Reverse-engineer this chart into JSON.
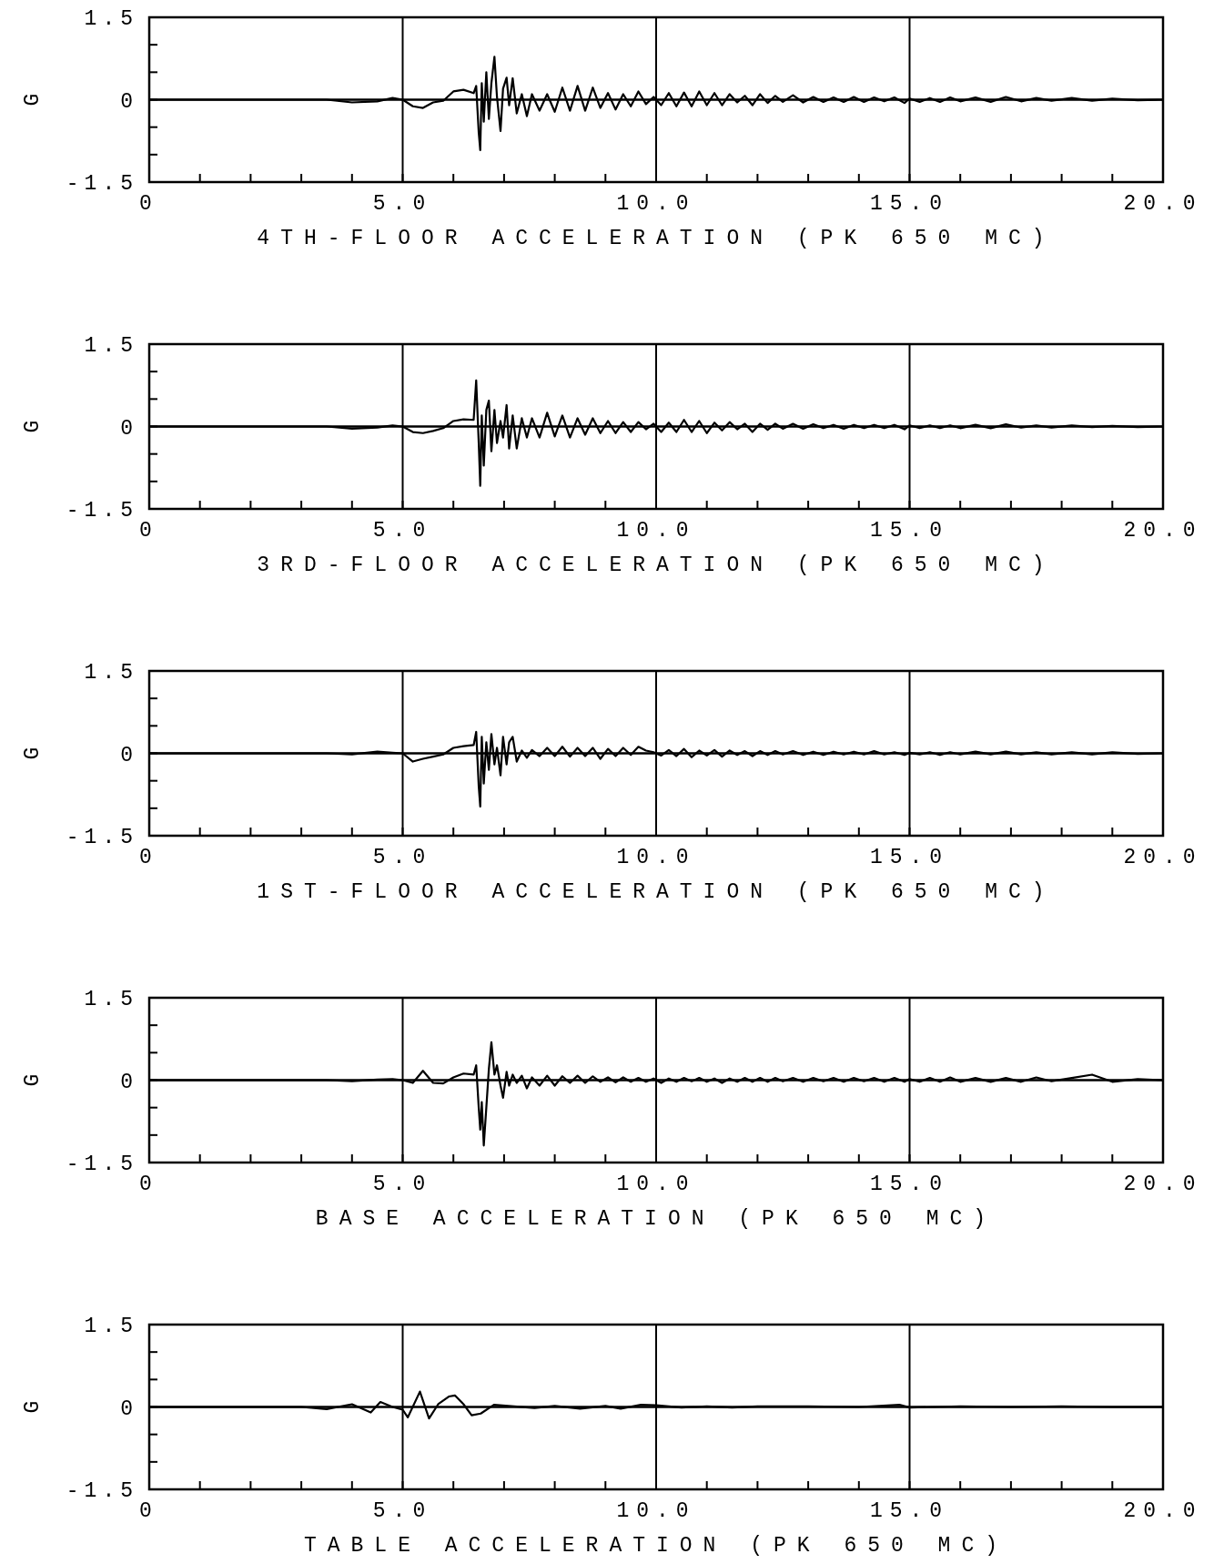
{
  "chart_data": [
    {
      "type": "line",
      "xlabel": "4TH-FLOOR ACCELERATION (PK 650 MC)",
      "ylabel": "G",
      "color": "#000000",
      "xlim": [
        0,
        20
      ],
      "ylim": [
        -1.5,
        1.5
      ],
      "xticks": [
        {
          "value": 0,
          "label": "0"
        },
        {
          "value": 1,
          "label": null
        },
        {
          "value": 2,
          "label": null
        },
        {
          "value": 3,
          "label": null
        },
        {
          "value": 4,
          "label": null
        },
        {
          "value": 5,
          "label": "5.0"
        },
        {
          "value": 6,
          "label": null
        },
        {
          "value": 7,
          "label": null
        },
        {
          "value": 8,
          "label": null
        },
        {
          "value": 9,
          "label": null
        },
        {
          "value": 10,
          "label": "10.0"
        },
        {
          "value": 11,
          "label": null
        },
        {
          "value": 12,
          "label": null
        },
        {
          "value": 13,
          "label": null
        },
        {
          "value": 14,
          "label": null
        },
        {
          "value": 15,
          "label": "15.0"
        },
        {
          "value": 16,
          "label": null
        },
        {
          "value": 17,
          "label": null
        },
        {
          "value": 18,
          "label": null
        },
        {
          "value": 19,
          "label": null
        },
        {
          "value": 20,
          "label": "20.0"
        }
      ],
      "yticks": [
        -1.5,
        {
          "value": -1,
          "label": null
        },
        {
          "value": -0.5,
          "label": null
        },
        0,
        {
          "value": 0.5,
          "label": null
        },
        {
          "value": 1,
          "label": null
        },
        1.5
      ],
      "ref_lines": [
        {
          "axis": "y",
          "value": 0
        },
        {
          "axis": "x",
          "value": 5
        },
        {
          "axis": "x",
          "value": 10
        },
        {
          "axis": "x",
          "value": 15
        }
      ],
      "x": [
        0,
        3.5,
        4.0,
        4.5,
        4.8,
        5.0,
        5.2,
        5.4,
        5.6,
        5.8,
        6.0,
        6.2,
        6.4,
        6.45,
        6.5,
        6.53,
        6.56,
        6.6,
        6.65,
        6.7,
        6.75,
        6.81,
        6.86,
        6.93,
        6.98,
        7.05,
        7.1,
        7.17,
        7.25,
        7.35,
        7.45,
        7.55,
        7.7,
        7.85,
        8.0,
        8.15,
        8.3,
        8.45,
        8.6,
        8.75,
        8.9,
        9.05,
        9.2,
        9.35,
        9.5,
        9.65,
        9.8,
        9.95,
        10.1,
        10.25,
        10.4,
        10.55,
        10.7,
        10.85,
        11.0,
        11.15,
        11.3,
        11.45,
        11.6,
        11.75,
        11.9,
        12.05,
        12.2,
        12.35,
        12.5,
        12.7,
        12.9,
        13.1,
        13.3,
        13.5,
        13.7,
        13.9,
        14.1,
        14.3,
        14.5,
        14.7,
        14.9,
        15.0,
        15.2,
        15.4,
        15.6,
        15.8,
        16.0,
        16.3,
        16.6,
        16.9,
        17.2,
        17.5,
        17.8,
        18.2,
        18.6,
        19.0,
        19.5,
        20.0
      ],
      "values": [
        0,
        0,
        -0.05,
        -0.03,
        0.03,
        0,
        -0.12,
        -0.15,
        -0.05,
        -0.02,
        0.15,
        0.18,
        0.12,
        0.25,
        -0.6,
        -0.92,
        0.3,
        -0.4,
        0.5,
        -0.35,
        0.3,
        0.78,
        0.05,
        -0.57,
        0.2,
        0.4,
        -0.1,
        0.39,
        -0.25,
        0.1,
        -0.3,
        0.1,
        -0.2,
        0.1,
        -0.22,
        0.22,
        -0.2,
        0.25,
        -0.2,
        0.22,
        -0.15,
        0.12,
        -0.18,
        0.1,
        -0.12,
        0.15,
        -0.08,
        0.05,
        -0.1,
        0.12,
        -0.12,
        0.13,
        -0.12,
        0.15,
        -0.1,
        0.12,
        -0.1,
        0.1,
        -0.05,
        0.07,
        -0.1,
        0.1,
        -0.06,
        0.07,
        -0.04,
        0.08,
        -0.05,
        0.05,
        -0.04,
        0.04,
        -0.04,
        0.05,
        -0.04,
        0.04,
        -0.03,
        0.04,
        -0.06,
        0.02,
        -0.04,
        0.03,
        -0.04,
        0.04,
        -0.03,
        0.04,
        -0.04,
        0.05,
        -0.03,
        0.03,
        -0.02,
        0.03,
        -0.02,
        0.02,
        -0.01,
        0
      ]
    },
    {
      "type": "line",
      "xlabel": "3RD-FLOOR ACCELERATION (PK 650 MC)",
      "ylabel": "G",
      "color": "#000000",
      "xlim": [
        0,
        20
      ],
      "ylim": [
        -1.5,
        1.5
      ],
      "xticks": [
        {
          "value": 0,
          "label": "0"
        },
        {
          "value": 1,
          "label": null
        },
        {
          "value": 2,
          "label": null
        },
        {
          "value": 3,
          "label": null
        },
        {
          "value": 4,
          "label": null
        },
        {
          "value": 5,
          "label": "5.0"
        },
        {
          "value": 6,
          "label": null
        },
        {
          "value": 7,
          "label": null
        },
        {
          "value": 8,
          "label": null
        },
        {
          "value": 9,
          "label": null
        },
        {
          "value": 10,
          "label": "10.0"
        },
        {
          "value": 11,
          "label": null
        },
        {
          "value": 12,
          "label": null
        },
        {
          "value": 13,
          "label": null
        },
        {
          "value": 14,
          "label": null
        },
        {
          "value": 15,
          "label": "15.0"
        },
        {
          "value": 16,
          "label": null
        },
        {
          "value": 17,
          "label": null
        },
        {
          "value": 18,
          "label": null
        },
        {
          "value": 19,
          "label": null
        },
        {
          "value": 20,
          "label": "20.0"
        }
      ],
      "yticks": [
        -1.5,
        {
          "value": -1,
          "label": null
        },
        {
          "value": -0.5,
          "label": null
        },
        0,
        {
          "value": 0.5,
          "label": null
        },
        {
          "value": 1,
          "label": null
        },
        1.5
      ],
      "ref_lines": [
        {
          "axis": "y",
          "value": 0
        },
        {
          "axis": "x",
          "value": 5
        },
        {
          "axis": "x",
          "value": 10
        },
        {
          "axis": "x",
          "value": 15
        }
      ],
      "x": [
        0,
        3.5,
        4.0,
        4.5,
        4.8,
        5.0,
        5.2,
        5.4,
        5.6,
        5.8,
        6.0,
        6.2,
        6.4,
        6.45,
        6.5,
        6.53,
        6.56,
        6.6,
        6.65,
        6.7,
        6.75,
        6.81,
        6.86,
        6.93,
        6.98,
        7.05,
        7.1,
        7.17,
        7.25,
        7.35,
        7.45,
        7.55,
        7.7,
        7.85,
        8.0,
        8.15,
        8.3,
        8.45,
        8.6,
        8.75,
        8.9,
        9.05,
        9.2,
        9.35,
        9.5,
        9.65,
        9.8,
        9.95,
        10.1,
        10.25,
        10.4,
        10.55,
        10.7,
        10.85,
        11.0,
        11.15,
        11.3,
        11.45,
        11.6,
        11.75,
        11.9,
        12.05,
        12.2,
        12.35,
        12.5,
        12.7,
        12.9,
        13.1,
        13.3,
        13.5,
        13.7,
        13.9,
        14.1,
        14.3,
        14.5,
        14.7,
        14.9,
        15.0,
        15.2,
        15.4,
        15.6,
        15.8,
        16.0,
        16.3,
        16.6,
        16.9,
        17.2,
        17.5,
        17.8,
        18.2,
        18.6,
        19.0,
        19.5,
        20.0
      ],
      "values": [
        0,
        0,
        -0.04,
        -0.02,
        0.02,
        0,
        -0.1,
        -0.12,
        -0.08,
        -0.03,
        0.1,
        0.13,
        0.12,
        0.84,
        -0.3,
        -1.08,
        0.2,
        -0.71,
        0.3,
        0.47,
        -0.45,
        0.3,
        -0.3,
        0.1,
        -0.2,
        0.39,
        -0.4,
        0.2,
        -0.4,
        0.15,
        -0.2,
        0.15,
        -0.2,
        0.25,
        -0.18,
        0.2,
        -0.2,
        0.15,
        -0.15,
        0.15,
        -0.12,
        0.1,
        -0.12,
        0.08,
        -0.1,
        0.08,
        -0.05,
        0.05,
        -0.1,
        0.07,
        -0.1,
        0.12,
        -0.1,
        0.1,
        -0.12,
        0.07,
        -0.07,
        0.08,
        -0.05,
        0.05,
        -0.1,
        0.05,
        -0.06,
        0.05,
        -0.04,
        0.05,
        -0.04,
        0.04,
        -0.03,
        0.03,
        -0.04,
        0.03,
        -0.03,
        0.03,
        -0.03,
        0.03,
        -0.05,
        0.02,
        -0.03,
        0.02,
        -0.03,
        0.02,
        -0.03,
        0.03,
        -0.03,
        0.04,
        -0.02,
        0.02,
        -0.02,
        0.02,
        -0.01,
        0.01,
        -0.01,
        0
      ]
    },
    {
      "type": "line",
      "xlabel": "1ST-FLOOR ACCELERATION (PK 650 MC)",
      "ylabel": "G",
      "color": "#000000",
      "xlim": [
        0,
        20
      ],
      "ylim": [
        -1.5,
        1.5
      ],
      "xticks": [
        {
          "value": 0,
          "label": "0"
        },
        {
          "value": 1,
          "label": null
        },
        {
          "value": 2,
          "label": null
        },
        {
          "value": 3,
          "label": null
        },
        {
          "value": 4,
          "label": null
        },
        {
          "value": 5,
          "label": "5.0"
        },
        {
          "value": 6,
          "label": null
        },
        {
          "value": 7,
          "label": null
        },
        {
          "value": 8,
          "label": null
        },
        {
          "value": 9,
          "label": null
        },
        {
          "value": 10,
          "label": "10.0"
        },
        {
          "value": 11,
          "label": null
        },
        {
          "value": 12,
          "label": null
        },
        {
          "value": 13,
          "label": null
        },
        {
          "value": 14,
          "label": null
        },
        {
          "value": 15,
          "label": "15.0"
        },
        {
          "value": 16,
          "label": null
        },
        {
          "value": 17,
          "label": null
        },
        {
          "value": 18,
          "label": null
        },
        {
          "value": 19,
          "label": null
        },
        {
          "value": 20,
          "label": "20.0"
        }
      ],
      "yticks": [
        -1.5,
        {
          "value": -1,
          "label": null
        },
        {
          "value": -0.5,
          "label": null
        },
        0,
        {
          "value": 0.5,
          "label": null
        },
        {
          "value": 1,
          "label": null
        },
        1.5
      ],
      "ref_lines": [
        {
          "axis": "y",
          "value": 0
        },
        {
          "axis": "x",
          "value": 5
        },
        {
          "axis": "x",
          "value": 10
        },
        {
          "axis": "x",
          "value": 15
        }
      ],
      "x": [
        0,
        3.5,
        4.0,
        4.5,
        4.8,
        5.0,
        5.2,
        5.4,
        5.6,
        5.8,
        6.0,
        6.2,
        6.4,
        6.45,
        6.5,
        6.53,
        6.56,
        6.6,
        6.65,
        6.7,
        6.75,
        6.81,
        6.86,
        6.93,
        6.98,
        7.05,
        7.1,
        7.17,
        7.25,
        7.35,
        7.45,
        7.55,
        7.7,
        7.85,
        8.0,
        8.15,
        8.3,
        8.45,
        8.6,
        8.75,
        8.9,
        9.05,
        9.2,
        9.35,
        9.5,
        9.65,
        9.8,
        9.95,
        10.1,
        10.25,
        10.4,
        10.55,
        10.7,
        10.85,
        11.0,
        11.15,
        11.3,
        11.45,
        11.6,
        11.75,
        11.9,
        12.05,
        12.2,
        12.35,
        12.5,
        12.7,
        12.9,
        13.1,
        13.3,
        13.5,
        13.7,
        13.9,
        14.1,
        14.3,
        14.5,
        14.7,
        14.9,
        15.0,
        15.2,
        15.4,
        15.6,
        15.8,
        16.0,
        16.3,
        16.6,
        16.9,
        17.2,
        17.5,
        17.8,
        18.2,
        18.6,
        19.0,
        19.5,
        20.0
      ],
      "values": [
        0,
        0,
        -0.02,
        0.03,
        0.01,
        0,
        -0.15,
        -0.1,
        -0.06,
        -0.02,
        0.1,
        0.13,
        0.15,
        0.39,
        -0.6,
        -0.97,
        0.3,
        -0.55,
        0.2,
        -0.3,
        0.35,
        -0.2,
        0.1,
        -0.4,
        0.3,
        -0.2,
        0.2,
        0.3,
        -0.15,
        0.05,
        -0.08,
        0.06,
        -0.05,
        0.1,
        -0.05,
        0.12,
        -0.06,
        0.1,
        -0.05,
        0.1,
        -0.1,
        0.08,
        -0.05,
        0.1,
        -0.03,
        0.12,
        0.05,
        0.02,
        -0.04,
        0.06,
        -0.05,
        0.08,
        -0.07,
        0.05,
        -0.04,
        0.06,
        -0.06,
        0.05,
        -0.03,
        0.04,
        -0.05,
        0.04,
        -0.03,
        0.04,
        -0.02,
        0.04,
        -0.03,
        0.03,
        -0.03,
        0.03,
        -0.02,
        0.03,
        -0.02,
        0.04,
        -0.02,
        0.02,
        -0.03,
        0.01,
        -0.02,
        0.02,
        -0.03,
        0.02,
        -0.02,
        0.03,
        -0.02,
        0.03,
        -0.02,
        0.02,
        -0.02,
        0.02,
        -0.02,
        0.02,
        -0.01,
        0
      ]
    },
    {
      "type": "line",
      "xlabel": "BASE ACCELERATION (PK 650 MC)",
      "ylabel": "G",
      "color": "#000000",
      "xlim": [
        0,
        20
      ],
      "ylim": [
        -1.5,
        1.5
      ],
      "xticks": [
        {
          "value": 0,
          "label": "0"
        },
        {
          "value": 1,
          "label": null
        },
        {
          "value": 2,
          "label": null
        },
        {
          "value": 3,
          "label": null
        },
        {
          "value": 4,
          "label": null
        },
        {
          "value": 5,
          "label": "5.0"
        },
        {
          "value": 6,
          "label": null
        },
        {
          "value": 7,
          "label": null
        },
        {
          "value": 8,
          "label": null
        },
        {
          "value": 9,
          "label": null
        },
        {
          "value": 10,
          "label": "10.0"
        },
        {
          "value": 11,
          "label": null
        },
        {
          "value": 12,
          "label": null
        },
        {
          "value": 13,
          "label": null
        },
        {
          "value": 14,
          "label": null
        },
        {
          "value": 15,
          "label": "15.0"
        },
        {
          "value": 16,
          "label": null
        },
        {
          "value": 17,
          "label": null
        },
        {
          "value": 18,
          "label": null
        },
        {
          "value": 19,
          "label": null
        },
        {
          "value": 20,
          "label": "20.0"
        }
      ],
      "yticks": [
        -1.5,
        {
          "value": -1,
          "label": null
        },
        {
          "value": -0.5,
          "label": null
        },
        0,
        {
          "value": 0.5,
          "label": null
        },
        {
          "value": 1,
          "label": null
        },
        1.5
      ],
      "ref_lines": [
        {
          "axis": "y",
          "value": 0
        },
        {
          "axis": "x",
          "value": 5
        },
        {
          "axis": "x",
          "value": 10
        },
        {
          "axis": "x",
          "value": 15
        }
      ],
      "x": [
        0,
        3.5,
        4.0,
        4.5,
        4.8,
        5.0,
        5.2,
        5.4,
        5.6,
        5.8,
        6.0,
        6.2,
        6.4,
        6.45,
        6.5,
        6.53,
        6.56,
        6.6,
        6.65,
        6.7,
        6.75,
        6.81,
        6.86,
        6.93,
        6.98,
        7.05,
        7.1,
        7.17,
        7.25,
        7.35,
        7.45,
        7.55,
        7.7,
        7.85,
        8.0,
        8.15,
        8.3,
        8.45,
        8.6,
        8.75,
        8.9,
        9.05,
        9.2,
        9.35,
        9.5,
        9.65,
        9.8,
        9.95,
        10.1,
        10.25,
        10.4,
        10.55,
        10.7,
        10.85,
        11.0,
        11.15,
        11.3,
        11.45,
        11.6,
        11.75,
        11.9,
        12.05,
        12.2,
        12.35,
        12.5,
        12.7,
        12.9,
        13.1,
        13.3,
        13.5,
        13.7,
        13.9,
        14.1,
        14.3,
        14.5,
        14.7,
        14.9,
        15.0,
        15.2,
        15.4,
        15.6,
        15.8,
        16.0,
        16.3,
        16.6,
        16.9,
        17.2,
        17.5,
        17.8,
        18.2,
        18.6,
        19.0,
        19.5,
        20.0
      ],
      "values": [
        0,
        0,
        -0.02,
        0.01,
        0.02,
        0,
        -0.05,
        0.17,
        -0.05,
        -0.06,
        0.05,
        0.12,
        0.1,
        0.27,
        -0.5,
        -0.9,
        -0.4,
        -1.19,
        -0.5,
        0.2,
        0.69,
        0.1,
        0.27,
        -0.1,
        -0.32,
        0.15,
        -0.1,
        0.1,
        -0.05,
        0.08,
        -0.15,
        0.05,
        -0.1,
        0.08,
        -0.1,
        0.07,
        -0.05,
        0.08,
        -0.05,
        0.07,
        -0.03,
        0.05,
        -0.04,
        0.05,
        -0.03,
        0.04,
        -0.03,
        0.03,
        -0.05,
        0.03,
        -0.03,
        0.04,
        -0.02,
        0.04,
        -0.03,
        0.03,
        -0.05,
        0.03,
        -0.03,
        0.04,
        -0.03,
        0.04,
        -0.03,
        0.04,
        -0.02,
        0.04,
        -0.03,
        0.04,
        -0.02,
        0.04,
        -0.03,
        0.04,
        -0.02,
        0.04,
        -0.03,
        0.04,
        -0.03,
        0.02,
        -0.03,
        0.04,
        -0.03,
        0.05,
        -0.03,
        0.04,
        -0.03,
        0.04,
        -0.03,
        0.05,
        -0.02,
        0.04,
        0.1,
        -0.03,
        0.02,
        0
      ]
    },
    {
      "type": "line",
      "xlabel": "TABLE ACCELERATION (PK 650 MC)",
      "ylabel": "G",
      "color": "#000000",
      "xlim": [
        0,
        20
      ],
      "ylim": [
        -1.5,
        1.5
      ],
      "xticks": [
        {
          "value": 0,
          "label": "0"
        },
        {
          "value": 1,
          "label": null
        },
        {
          "value": 2,
          "label": null
        },
        {
          "value": 3,
          "label": null
        },
        {
          "value": 4,
          "label": null
        },
        {
          "value": 5,
          "label": "5.0"
        },
        {
          "value": 6,
          "label": null
        },
        {
          "value": 7,
          "label": null
        },
        {
          "value": 8,
          "label": null
        },
        {
          "value": 9,
          "label": null
        },
        {
          "value": 10,
          "label": "10.0"
        },
        {
          "value": 11,
          "label": null
        },
        {
          "value": 12,
          "label": null
        },
        {
          "value": 13,
          "label": null
        },
        {
          "value": 14,
          "label": null
        },
        {
          "value": 15,
          "label": "15.0"
        },
        {
          "value": 16,
          "label": null
        },
        {
          "value": 17,
          "label": null
        },
        {
          "value": 18,
          "label": null
        },
        {
          "value": 19,
          "label": null
        },
        {
          "value": 20,
          "label": "20.0"
        }
      ],
      "yticks": [
        -1.5,
        {
          "value": -1,
          "label": null
        },
        {
          "value": -0.5,
          "label": null
        },
        0,
        {
          "value": 0.5,
          "label": null
        },
        {
          "value": 1,
          "label": null
        },
        1.5
      ],
      "ref_lines": [
        {
          "axis": "y",
          "value": 0
        },
        {
          "axis": "x",
          "value": 5
        },
        {
          "axis": "x",
          "value": 10
        },
        {
          "axis": "x",
          "value": 15
        }
      ],
      "x": [
        0,
        3.0,
        3.5,
        4.0,
        4.37,
        4.56,
        4.8,
        5.0,
        5.1,
        5.34,
        5.52,
        5.7,
        5.91,
        6.03,
        6.2,
        6.36,
        6.54,
        6.8,
        7.2,
        7.6,
        8.0,
        8.5,
        9.0,
        9.3,
        9.7,
        10.0,
        10.5,
        11.0,
        11.5,
        12.0,
        13.0,
        14.0,
        14.8,
        15.0,
        16.0,
        17.0,
        18.0,
        19.0,
        20.0
      ],
      "values": [
        0,
        0,
        -0.04,
        0.05,
        -0.1,
        0.09,
        0,
        -0.05,
        -0.19,
        0.28,
        -0.21,
        0.05,
        0.19,
        0.21,
        0.05,
        -0.15,
        -0.12,
        0.04,
        0.01,
        -0.02,
        0.02,
        -0.03,
        0.02,
        -0.03,
        0.04,
        0.03,
        -0.01,
        0.01,
        -0.01,
        0.01,
        0.01,
        0,
        0.04,
        -0.01,
        0.01,
        0,
        0.01,
        0,
        0
      ]
    }
  ]
}
